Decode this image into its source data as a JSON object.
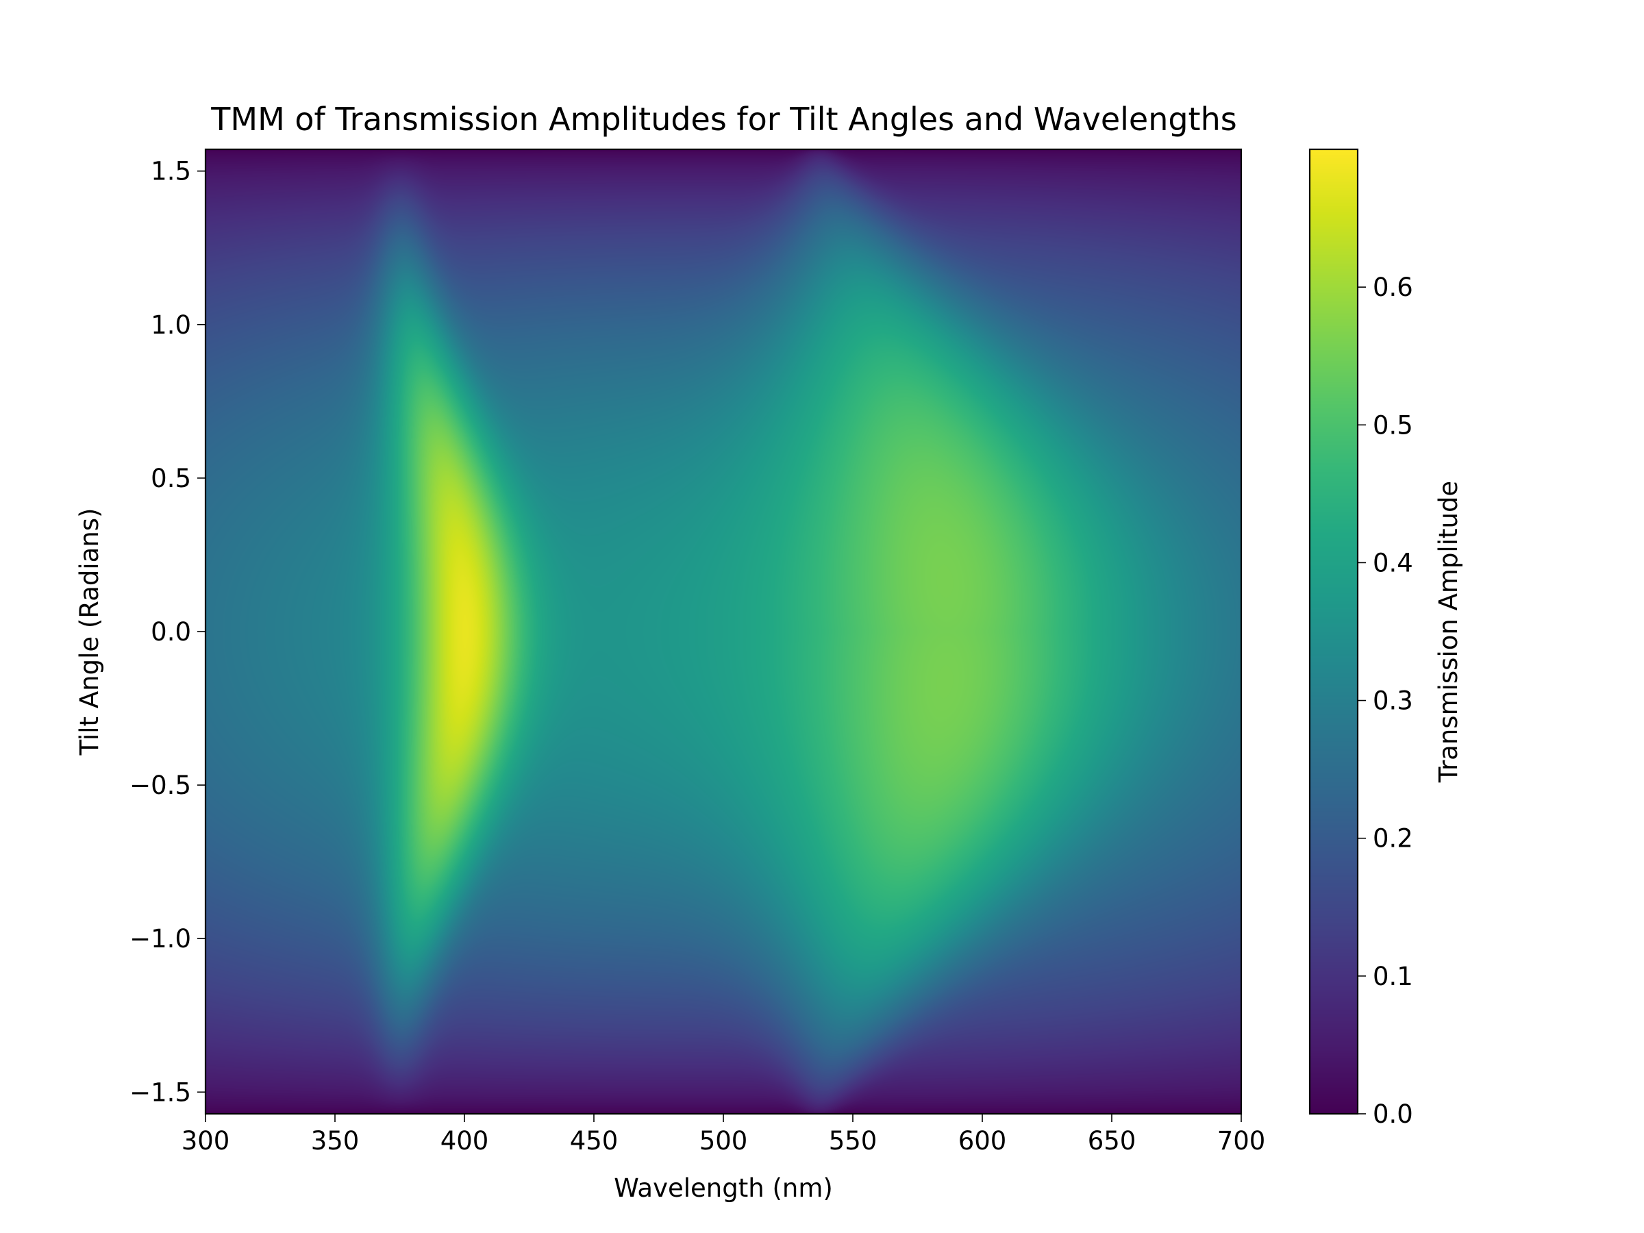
{
  "chart_data": {
    "type": "heatmap",
    "title": "TMM of Transmission Amplitudes for Tilt Angles and Wavelengths",
    "xlabel": "Wavelength (nm)",
    "ylabel": "Tilt Angle (Radians)",
    "colorbar_label": "Transmission Amplitude",
    "colormap": "viridis",
    "xlim": [
      300,
      700
    ],
    "ylim": [
      -1.5708,
      1.5708
    ],
    "clim": [
      0.0,
      0.7
    ],
    "xticks": [
      300,
      350,
      400,
      450,
      500,
      550,
      600,
      650,
      700
    ],
    "xtick_labels": [
      "300",
      "350",
      "400",
      "450",
      "500",
      "550",
      "600",
      "650",
      "700"
    ],
    "yticks": [
      -1.5,
      -1.0,
      -0.5,
      0.0,
      0.5,
      1.0,
      1.5
    ],
    "ytick_labels": [
      "−1.5",
      "−1.0",
      "−0.5",
      "0.0",
      "0.5",
      "1.0",
      "1.5"
    ],
    "colorbar_ticks": [
      0.0,
      0.1,
      0.2,
      0.3,
      0.4,
      0.5,
      0.6
    ],
    "colorbar_tick_labels": [
      "0.0",
      "0.1",
      "0.2",
      "0.3",
      "0.4",
      "0.5",
      "0.6"
    ],
    "features": [
      {
        "kind": "peak",
        "wavelength_nm": 375,
        "peak_wavelength_at_zero_tilt_nm": 400,
        "max_amplitude": 0.7
      },
      {
        "kind": "peak",
        "wavelength_nm": 537,
        "peak_wavelength_at_zero_tilt_nm": 590,
        "max_amplitude": 0.56
      }
    ],
    "grid": false
  }
}
